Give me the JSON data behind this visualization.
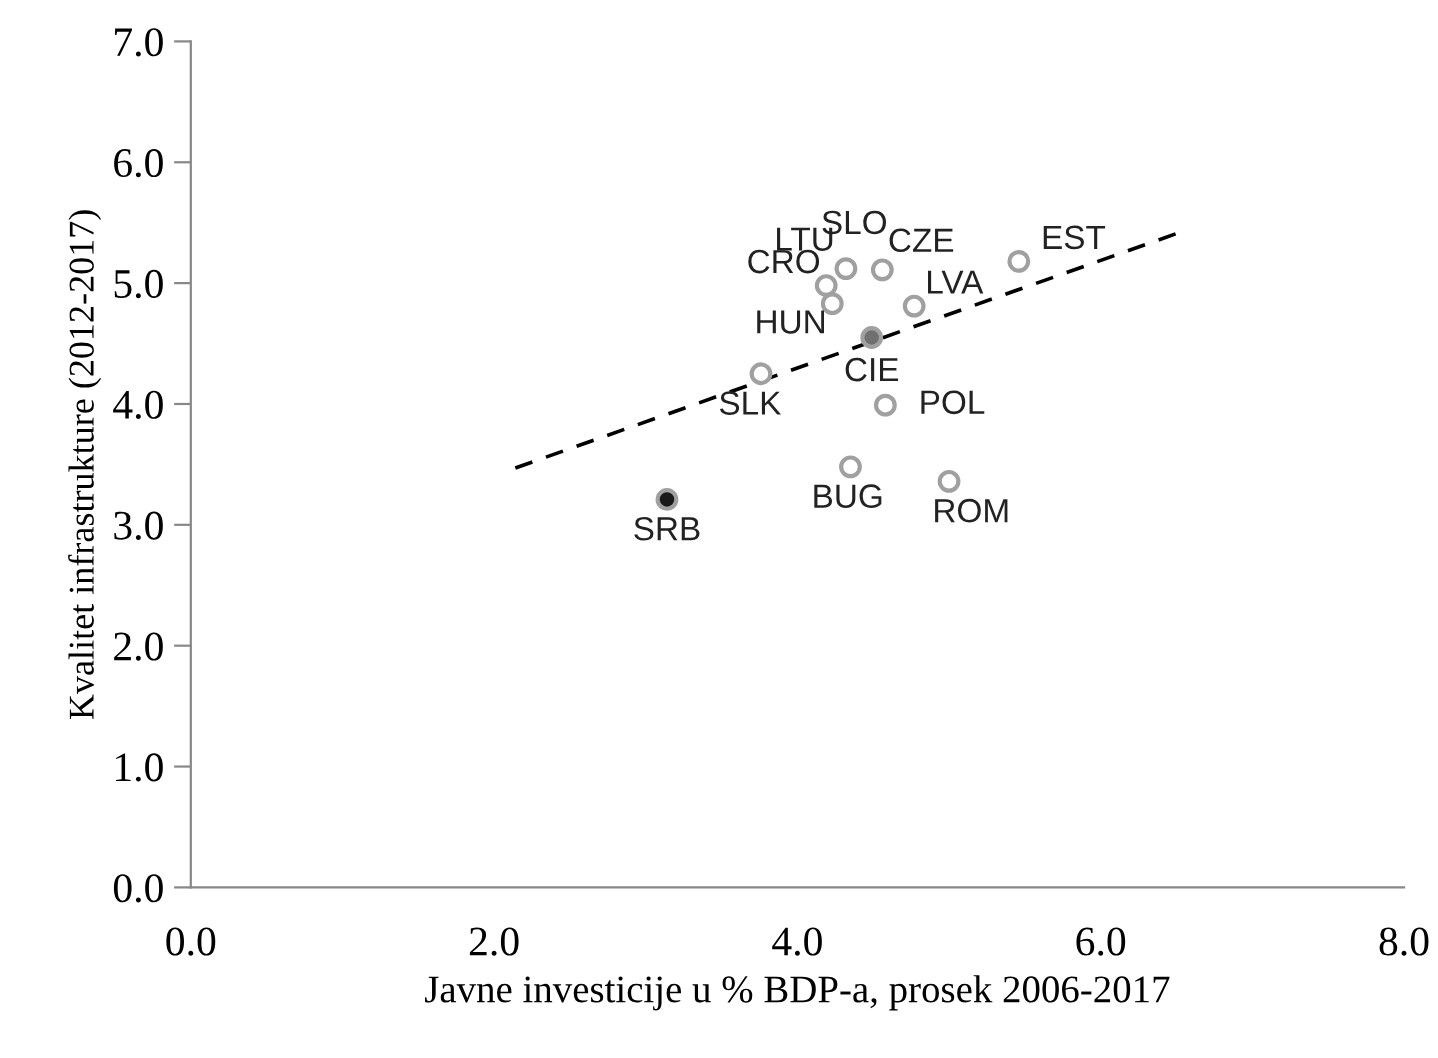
{
  "chart_data": {
    "type": "scatter",
    "xlabel": "Javne investicije u % BDP-a, prosek 2006-2017",
    "ylabel": "Kvalitet infrastrukture (2012-2017)",
    "xlim": [
      0,
      8
    ],
    "ylim": [
      0,
      7
    ],
    "xticks": [
      {
        "value": 0,
        "label": "0.0"
      },
      {
        "value": 2,
        "label": "2.0"
      },
      {
        "value": 4,
        "label": "4.0"
      },
      {
        "value": 6,
        "label": "6.0"
      },
      {
        "value": 8,
        "label": "8.0"
      }
    ],
    "yticks": [
      {
        "value": 0,
        "label": "0.0"
      },
      {
        "value": 1,
        "label": "1.0"
      },
      {
        "value": 2,
        "label": "2.0"
      },
      {
        "value": 3,
        "label": "3.0"
      },
      {
        "value": 4,
        "label": "4.0"
      },
      {
        "value": 5,
        "label": "5.0"
      },
      {
        "value": 6,
        "label": "6.0"
      },
      {
        "value": 7,
        "label": "7.0"
      }
    ],
    "grid": false,
    "legend": false,
    "marker": "circle",
    "series": [
      {
        "x": [
          null,
          4.32,
          4.56,
          4.19,
          4.23,
          4.77,
          5.46,
          4.49,
          3.76,
          4.58,
          4.35,
          5.0,
          3.14
        ],
        "values": [
          null,
          5.12,
          5.11,
          4.98,
          4.83,
          4.81,
          5.18,
          4.55,
          4.25,
          3.99,
          3.48,
          3.36,
          3.21
        ],
        "colors": [
          "#ffffff",
          "#ffffff",
          "#ffffff",
          "#ffffff",
          "#ffffff",
          "#ffffff",
          "#ffffff",
          "#707070",
          "#ffffff",
          "#ffffff",
          "#ffffff",
          "#ffffff",
          "#1a1a1a"
        ]
      },
      {
        "type": "line",
        "x": [
          2.14,
          6.5
        ],
        "values": [
          3.47,
          5.41
        ],
        "color": "#000000",
        "line_style": "dashed",
        "marker": "none"
      }
    ],
    "annotations": [
      {
        "text": "SLO",
        "x": 4.32,
        "y": 5.12
      },
      {
        "text": "LTU",
        "x": 4.32,
        "y": 5.12
      },
      {
        "text": "CZE",
        "x": 4.56,
        "y": 5.11
      },
      {
        "text": "CRO",
        "x": 4.19,
        "y": 4.98
      },
      {
        "text": "HUN",
        "x": 4.23,
        "y": 4.83
      },
      {
        "text": "LVA",
        "x": 4.77,
        "y": 4.81
      },
      {
        "text": "EST",
        "x": 5.46,
        "y": 5.18
      },
      {
        "text": "CIE",
        "x": 4.49,
        "y": 4.55
      },
      {
        "text": "SLK",
        "x": 3.76,
        "y": 4.25
      },
      {
        "text": "POL",
        "x": 4.58,
        "y": 3.99
      },
      {
        "text": "BUG",
        "x": 4.35,
        "y": 3.48
      },
      {
        "text": "ROM",
        "x": 5.0,
        "y": 3.36
      },
      {
        "text": "SRB",
        "x": 3.14,
        "y": 3.21
      }
    ]
  }
}
